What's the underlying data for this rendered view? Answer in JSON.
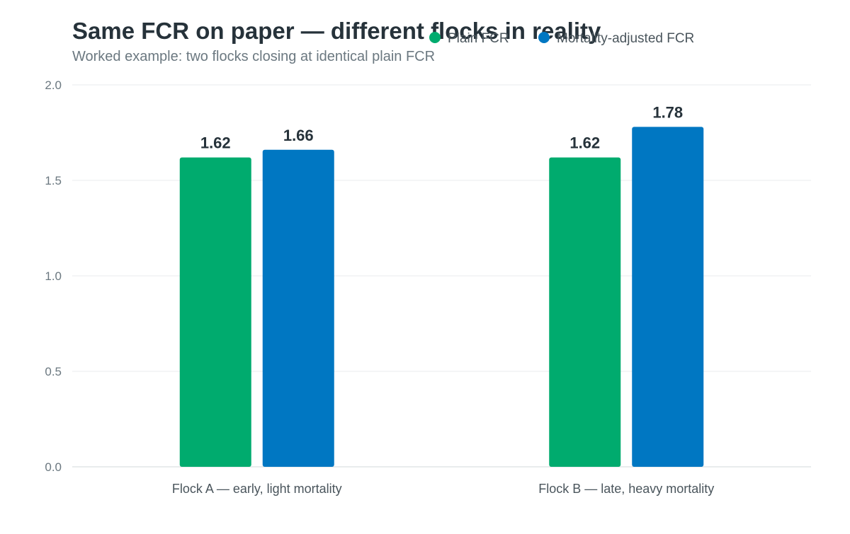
{
  "chart_data": {
    "type": "bar",
    "title": "Same FCR on paper — different flocks in reality",
    "subtitle": "Worked example: two flocks closing at identical plain FCR",
    "categories": [
      "Flock A — early, light mortality",
      "Flock B — late, heavy mortality"
    ],
    "series": [
      {
        "name": "Plain FCR",
        "values": [
          1.62,
          1.62
        ],
        "color": "#00AB6E"
      },
      {
        "name": "Mortality-adjusted FCR",
        "values": [
          1.66,
          1.78
        ],
        "color": "#0077C2"
      }
    ],
    "ylim": [
      0,
      2.0
    ],
    "yticks": [
      "0.0",
      "0.5",
      "1.0",
      "1.5",
      "2.0"
    ],
    "data_labels": [
      [
        "1.62",
        "1.62"
      ],
      [
        "1.66",
        "1.78"
      ]
    ],
    "xlabel": "",
    "ylabel": "",
    "grid": true,
    "legend_position": "top"
  }
}
